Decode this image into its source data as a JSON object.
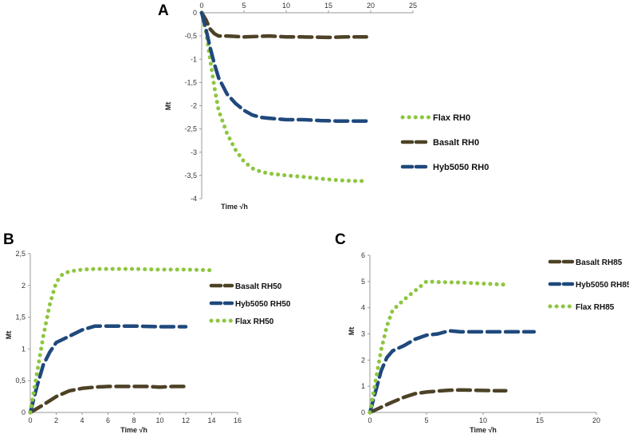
{
  "chart_data": [
    {
      "panel_label": "A",
      "type": "line",
      "xlabel": "Time √h",
      "ylabel": "Mt",
      "xlim": [
        0,
        25
      ],
      "ylim": [
        -4,
        0
      ],
      "x_ticks": [
        "0",
        "5",
        "10",
        "15",
        "20",
        "25"
      ],
      "y_ticks": [
        "0",
        "-0,5",
        "-1",
        "-1,5",
        "-2",
        "-2,5",
        "-3",
        "-3,5",
        "-4"
      ],
      "legend": [
        "Flax RH0",
        "Basalt RH0",
        "Hyb5050 RH0"
      ],
      "series": [
        {
          "name": "Flax RH0",
          "color": "#8dc63f",
          "style": "dotted",
          "x": [
            0,
            0.5,
            1,
            1.5,
            2,
            3,
            4,
            5,
            6,
            7,
            8,
            10,
            12,
            14,
            16,
            18,
            19.5
          ],
          "y": [
            0,
            -0.4,
            -1.0,
            -1.6,
            -2.1,
            -2.6,
            -2.95,
            -3.2,
            -3.35,
            -3.42,
            -3.46,
            -3.5,
            -3.53,
            -3.57,
            -3.6,
            -3.62,
            -3.62
          ]
        },
        {
          "name": "Basalt RH0",
          "color": "#4d4226",
          "style": "dashed",
          "x": [
            0,
            0.5,
            1,
            1.5,
            2,
            3,
            5,
            8,
            10,
            12,
            15,
            17,
            19.5
          ],
          "y": [
            0,
            -0.15,
            -0.35,
            -0.45,
            -0.5,
            -0.5,
            -0.52,
            -0.5,
            -0.52,
            -0.52,
            -0.53,
            -0.52,
            -0.52
          ]
        },
        {
          "name": "Hyb5050 RH0",
          "color": "#1f497d",
          "style": "dashed",
          "x": [
            0,
            0.5,
            1,
            1.5,
            2,
            3,
            4,
            5,
            6,
            7,
            8,
            10,
            12,
            14,
            16,
            18,
            19.5
          ],
          "y": [
            0,
            -0.35,
            -0.75,
            -1.1,
            -1.4,
            -1.75,
            -1.95,
            -2.1,
            -2.2,
            -2.25,
            -2.27,
            -2.3,
            -2.3,
            -2.32,
            -2.33,
            -2.33,
            -2.33
          ]
        }
      ]
    },
    {
      "panel_label": "B",
      "type": "line",
      "xlabel": "Time √h",
      "ylabel": "Mt",
      "xlim": [
        0,
        16
      ],
      "ylim": [
        0,
        2.5
      ],
      "x_ticks": [
        "0",
        "2",
        "4",
        "6",
        "8",
        "10",
        "12",
        "14",
        "16"
      ],
      "y_ticks": [
        "0",
        "0,5",
        "1",
        "1,5",
        "2",
        "2,5"
      ],
      "legend": [
        "Basalt RH50",
        "Hyb5050 RH50",
        "Flax RH50"
      ],
      "series": [
        {
          "name": "Basalt RH50",
          "color": "#4d4226",
          "style": "dashed",
          "x": [
            0,
            1,
            2,
            3,
            4,
            5,
            6,
            7,
            8,
            9,
            10,
            11,
            12
          ],
          "y": [
            0,
            0.12,
            0.25,
            0.34,
            0.38,
            0.4,
            0.41,
            0.41,
            0.41,
            0.41,
            0.4,
            0.41,
            0.41
          ]
        },
        {
          "name": "Hyb5050 RH50",
          "color": "#1f497d",
          "style": "dashed",
          "x": [
            0,
            0.5,
            1,
            1.5,
            2,
            3,
            4,
            5,
            6,
            8,
            10,
            12
          ],
          "y": [
            0,
            0.4,
            0.75,
            0.95,
            1.1,
            1.2,
            1.3,
            1.36,
            1.36,
            1.36,
            1.35,
            1.35
          ]
        },
        {
          "name": "Flax RH50",
          "color": "#8dc63f",
          "style": "dotted",
          "x": [
            0,
            0.5,
            1,
            1.5,
            2,
            2.5,
            3,
            4,
            5,
            6,
            8,
            10,
            12,
            14
          ],
          "y": [
            0,
            0.6,
            1.2,
            1.7,
            2.05,
            2.18,
            2.22,
            2.25,
            2.26,
            2.26,
            2.26,
            2.25,
            2.25,
            2.24
          ]
        }
      ]
    },
    {
      "panel_label": "C",
      "type": "line",
      "xlabel": "Time √h",
      "ylabel": "Mt",
      "xlim": [
        0,
        20
      ],
      "ylim": [
        0,
        6
      ],
      "x_ticks": [
        "0",
        "5",
        "10",
        "15",
        "20"
      ],
      "y_ticks": [
        "0",
        "1",
        "2",
        "3",
        "4",
        "5",
        "6"
      ],
      "legend": [
        "Basalt RH85",
        "Hyb5050 RH85",
        "Flax RH85"
      ],
      "series": [
        {
          "name": "Basalt RH85",
          "color": "#4d4226",
          "style": "dashed",
          "x": [
            0,
            1,
            2,
            3,
            4,
            5,
            6,
            7,
            8,
            9,
            10,
            11,
            12
          ],
          "y": [
            0,
            0.2,
            0.4,
            0.58,
            0.72,
            0.78,
            0.82,
            0.85,
            0.86,
            0.85,
            0.84,
            0.83,
            0.83
          ]
        },
        {
          "name": "Hyb5050 RH85",
          "color": "#1f497d",
          "style": "dashed",
          "x": [
            0,
            0.5,
            1,
            1.5,
            2,
            3,
            4,
            5,
            6,
            7,
            8,
            10,
            12,
            14.5
          ],
          "y": [
            0,
            0.8,
            1.6,
            2.1,
            2.35,
            2.55,
            2.8,
            2.95,
            3.0,
            3.12,
            3.08,
            3.08,
            3.08,
            3.08
          ]
        },
        {
          "name": "Flax RH85",
          "color": "#8dc63f",
          "style": "dotted",
          "x": [
            0,
            0.5,
            1,
            1.5,
            2,
            3,
            4,
            5,
            6,
            8,
            10,
            12
          ],
          "y": [
            0,
            1.2,
            2.4,
            3.3,
            3.9,
            4.3,
            4.65,
            5.0,
            4.98,
            4.96,
            4.92,
            4.88
          ]
        }
      ]
    }
  ]
}
